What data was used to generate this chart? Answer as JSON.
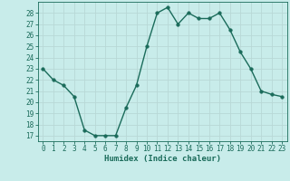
{
  "x": [
    0,
    1,
    2,
    3,
    4,
    5,
    6,
    7,
    8,
    9,
    10,
    11,
    12,
    13,
    14,
    15,
    16,
    17,
    18,
    19,
    20,
    21,
    22,
    23
  ],
  "y": [
    23,
    22,
    21.5,
    20.5,
    17.5,
    17,
    17,
    17,
    19.5,
    21.5,
    25,
    28,
    28.5,
    27,
    28,
    27.5,
    27.5,
    28,
    26.5,
    24.5,
    23,
    21,
    20.7,
    20.5
  ],
  "line_color": "#1a6b5a",
  "marker_color": "#1a6b5a",
  "bg_color": "#c8ecea",
  "grid_color": "#b8d8d6",
  "xlabel": "Humidex (Indice chaleur)",
  "xlabel_color": "#1a6b5a",
  "tick_color": "#1a6b5a",
  "spine_color": "#1a6b5a",
  "ylim": [
    16.5,
    29
  ],
  "xlim": [
    -0.5,
    23.5
  ],
  "yticks": [
    17,
    18,
    19,
    20,
    21,
    22,
    23,
    24,
    25,
    26,
    27,
    28
  ],
  "xticks": [
    0,
    1,
    2,
    3,
    4,
    5,
    6,
    7,
    8,
    9,
    10,
    11,
    12,
    13,
    14,
    15,
    16,
    17,
    18,
    19,
    20,
    21,
    22,
    23
  ],
  "xtick_labels": [
    "0",
    "1",
    "2",
    "3",
    "4",
    "5",
    "6",
    "7",
    "8",
    "9",
    "10",
    "11",
    "12",
    "13",
    "14",
    "15",
    "16",
    "17",
    "18",
    "19",
    "20",
    "21",
    "22",
    "23"
  ],
  "ytick_labels": [
    "17",
    "18",
    "19",
    "20",
    "21",
    "22",
    "23",
    "24",
    "25",
    "26",
    "27",
    "28"
  ],
  "marker_size": 2.5,
  "line_width": 1.0,
  "font_size_ticks": 5.5,
  "font_size_xlabel": 6.5
}
